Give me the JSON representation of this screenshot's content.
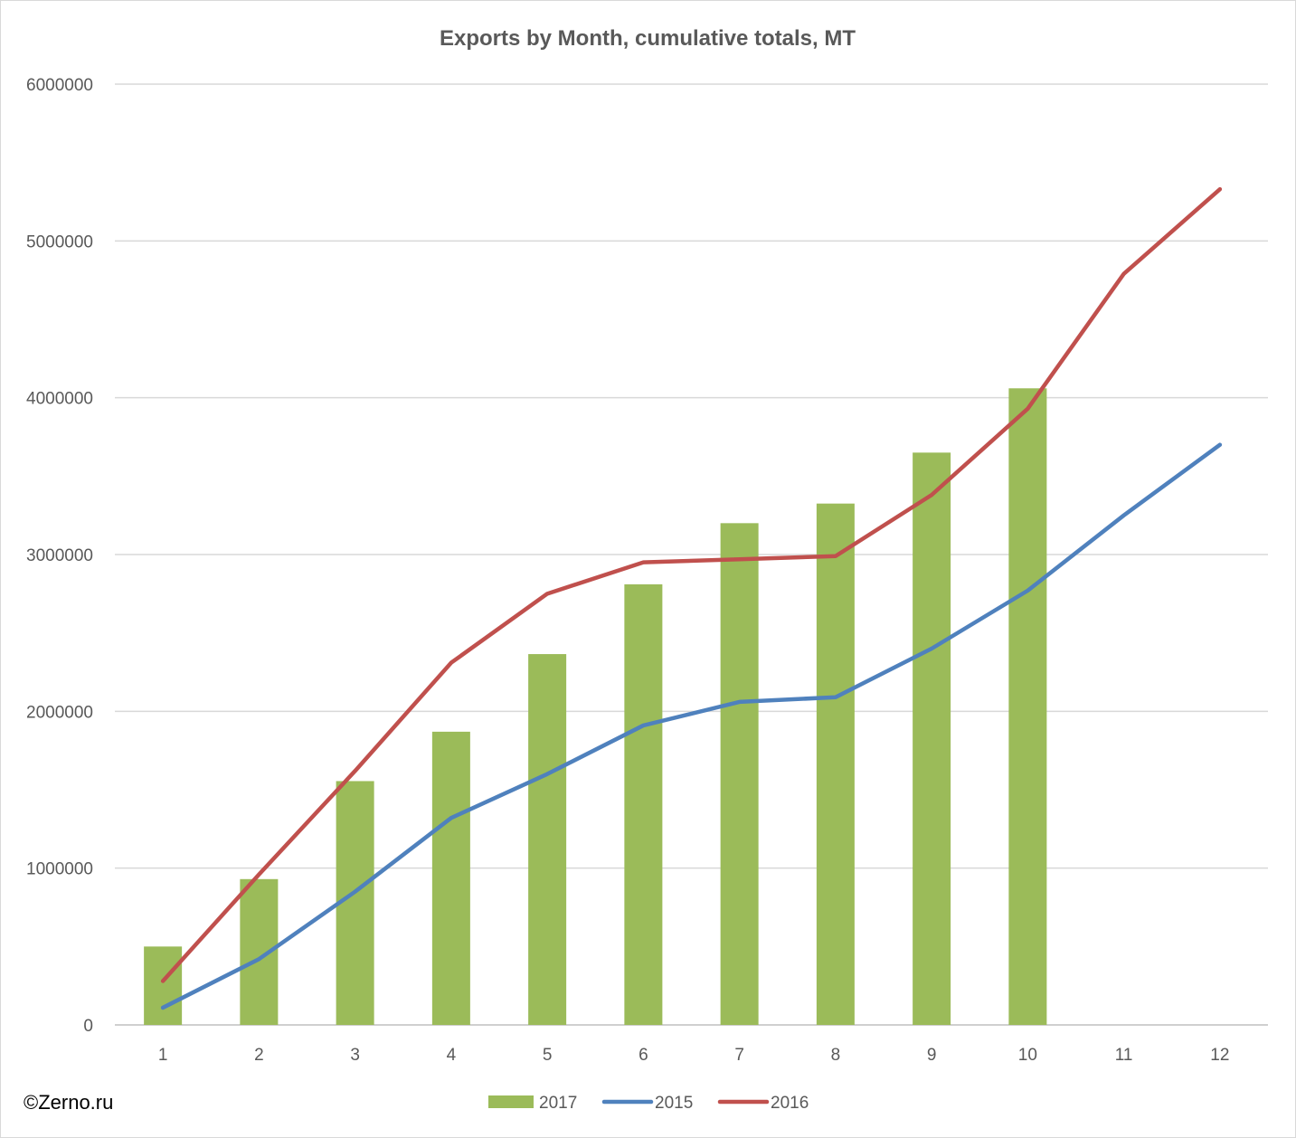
{
  "chart_data": {
    "type": "bar",
    "title": "Exports by Month, cumulative totals, MT",
    "categories": [
      "1",
      "2",
      "3",
      "4",
      "5",
      "6",
      "7",
      "8",
      "9",
      "10",
      "11",
      "12"
    ],
    "ylim": [
      0,
      6000000
    ],
    "yticks": [
      "0",
      "1000000",
      "2000000",
      "3000000",
      "4000000",
      "5000000",
      "6000000"
    ],
    "grid": true,
    "legend_position": "bottom",
    "series": [
      {
        "name": "2017",
        "type": "bar",
        "color": "#9bbb59",
        "values": [
          500000,
          930000,
          1555000,
          1870000,
          2365000,
          2810000,
          3200000,
          3325000,
          3650000,
          4060000,
          null,
          null
        ]
      },
      {
        "name": "2015",
        "type": "line",
        "color": "#4f81bd",
        "values": [
          110000,
          420000,
          850000,
          1320000,
          1600000,
          1910000,
          2060000,
          2090000,
          2400000,
          2770000,
          3250000,
          3700000
        ]
      },
      {
        "name": "2016",
        "type": "line",
        "color": "#c0504d",
        "values": [
          280000,
          960000,
          1620000,
          2310000,
          2750000,
          2950000,
          2970000,
          2990000,
          3380000,
          3930000,
          4790000,
          5330000
        ]
      }
    ]
  },
  "watermark": "©Zerno.ru"
}
